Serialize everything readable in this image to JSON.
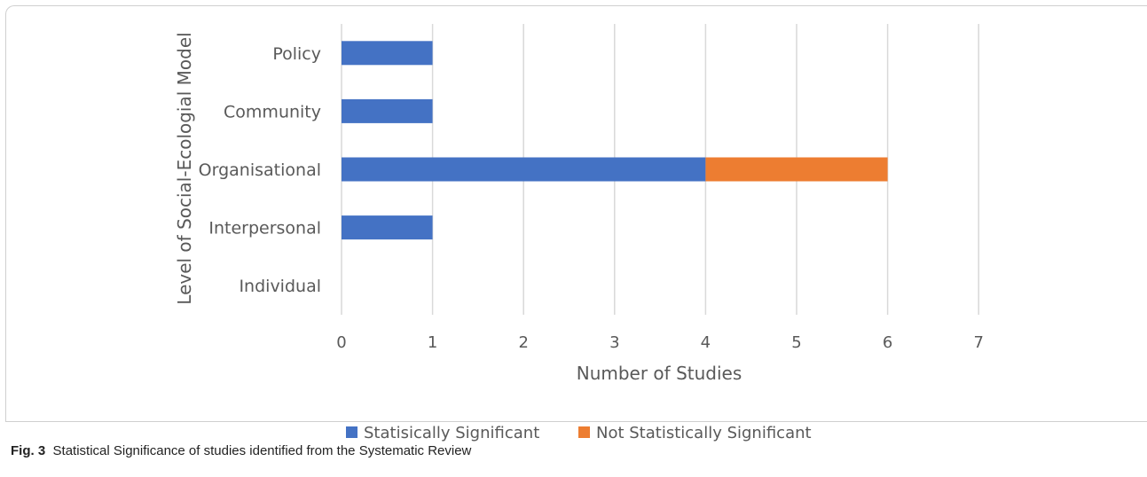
{
  "chart_data": {
    "type": "bar",
    "orientation": "horizontal",
    "stacked": true,
    "categories": [
      "Policy",
      "Community",
      "Organisational",
      "Interpersonal",
      "Individual"
    ],
    "series": [
      {
        "name": "Statisically Significant",
        "values": [
          1,
          1,
          4,
          1,
          0
        ],
        "color": "#4472C4"
      },
      {
        "name": "Not Statistically Significant",
        "values": [
          0,
          0,
          2,
          0,
          0
        ],
        "color": "#ED7D31"
      }
    ],
    "xlabel": "Number of Studies",
    "ylabel": "Level of Social-Ecologial Model",
    "xlim": [
      0,
      7
    ],
    "xticks": [
      "0",
      "1",
      "2",
      "3",
      "4",
      "5",
      "6",
      "7"
    ],
    "grid": "vertical",
    "legend": "bottom"
  },
  "caption": {
    "label": "Fig. 3",
    "text": "Statistical Significance of studies identified from the Systematic Review"
  }
}
